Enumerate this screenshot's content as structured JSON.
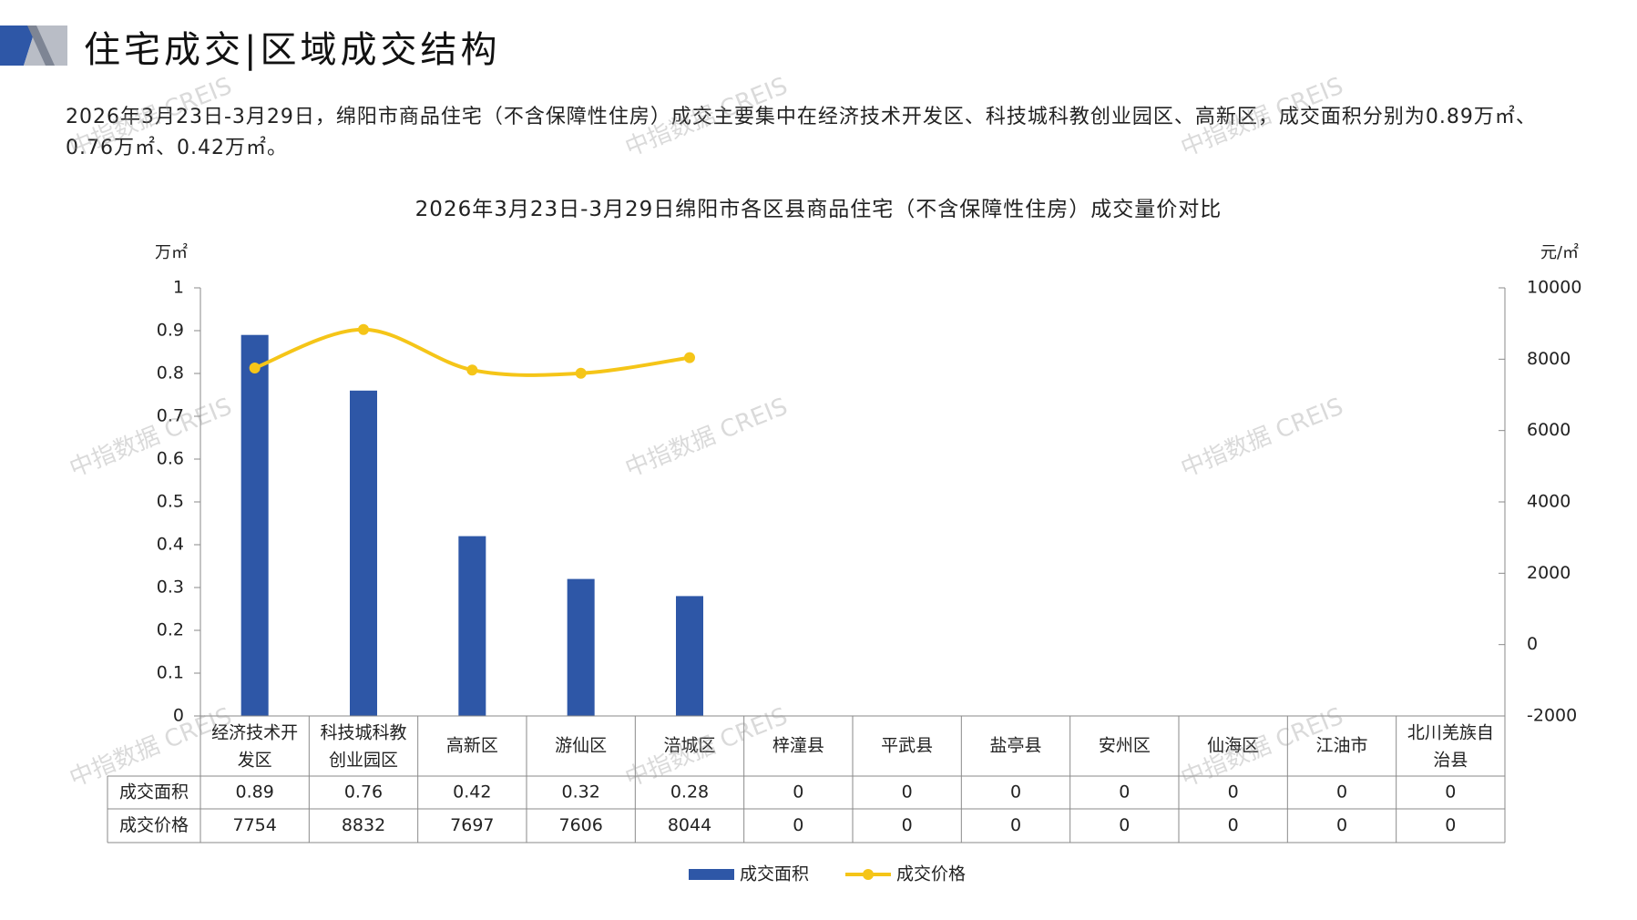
{
  "header": {
    "title": "住宅成交|区域成交结构"
  },
  "summary_text": "2026年3月23日-3月29日，绵阳市商品住宅（不含保障性住房）成交主要集中在经济技术开发区、科技城科教创业园区、高新区，成交面积分别为0.89万㎡、0.76万㎡、0.42万㎡。",
  "watermark_text": "中指数据 CREIS",
  "colors": {
    "bar": "#2E57A7",
    "line": "#F5C518",
    "logo_dark": "#2E57A7",
    "logo_light": "#B9BDC6"
  },
  "chart_data": {
    "type": "bar",
    "title": "2026年3月23日-3月29日绵阳市各区县商品住宅（不含保障性住房）成交量价对比",
    "ylabel": "万㎡",
    "y2label": "元/㎡",
    "ylim": [
      0,
      1
    ],
    "y2lim": [
      -2000,
      10000
    ],
    "yticks": [
      "0",
      "0.1",
      "0.2",
      "0.3",
      "0.4",
      "0.5",
      "0.6",
      "0.7",
      "0.8",
      "0.9",
      "1"
    ],
    "y2ticks": [
      "-2000",
      "0",
      "2000",
      "4000",
      "6000",
      "8000",
      "10000"
    ],
    "categories": [
      "经济技术开发区",
      "科技城科教创业园区",
      "高新区",
      "游仙区",
      "涪城区",
      "梓潼县",
      "平武县",
      "盐亭县",
      "安州区",
      "仙海区",
      "江油市",
      "北川羌族自治县"
    ],
    "category_labels": [
      [
        "经济技术开",
        "发区"
      ],
      [
        "科技城科教",
        "创业园区"
      ],
      [
        "高新区"
      ],
      [
        "游仙区"
      ],
      [
        "涪城区"
      ],
      [
        "梓潼县"
      ],
      [
        "平武县"
      ],
      [
        "盐亭县"
      ],
      [
        "安州区"
      ],
      [
        "仙海区"
      ],
      [
        "江油市"
      ],
      [
        "北川羌族自",
        "治县"
      ]
    ],
    "series": [
      {
        "name": "成交面积",
        "type": "bar",
        "axis": "left",
        "values": [
          0.89,
          0.76,
          0.42,
          0.32,
          0.28,
          0,
          0,
          0,
          0,
          0,
          0,
          0
        ],
        "value_labels": [
          "0.89",
          "0.76",
          "0.42",
          "0.32",
          "0.28",
          "0",
          "0",
          "0",
          "0",
          "0",
          "0",
          "0"
        ]
      },
      {
        "name": "成交价格",
        "type": "line",
        "axis": "right",
        "values": [
          7754,
          8832,
          7697,
          7606,
          8044,
          0,
          0,
          0,
          0,
          0,
          0,
          0
        ],
        "value_labels": [
          "7754",
          "8832",
          "7697",
          "7606",
          "8044",
          "0",
          "0",
          "0",
          "0",
          "0",
          "0",
          "0"
        ],
        "plotted_points": 5
      }
    ],
    "legend_position": "bottom-center",
    "grid": false,
    "data_table": true
  }
}
